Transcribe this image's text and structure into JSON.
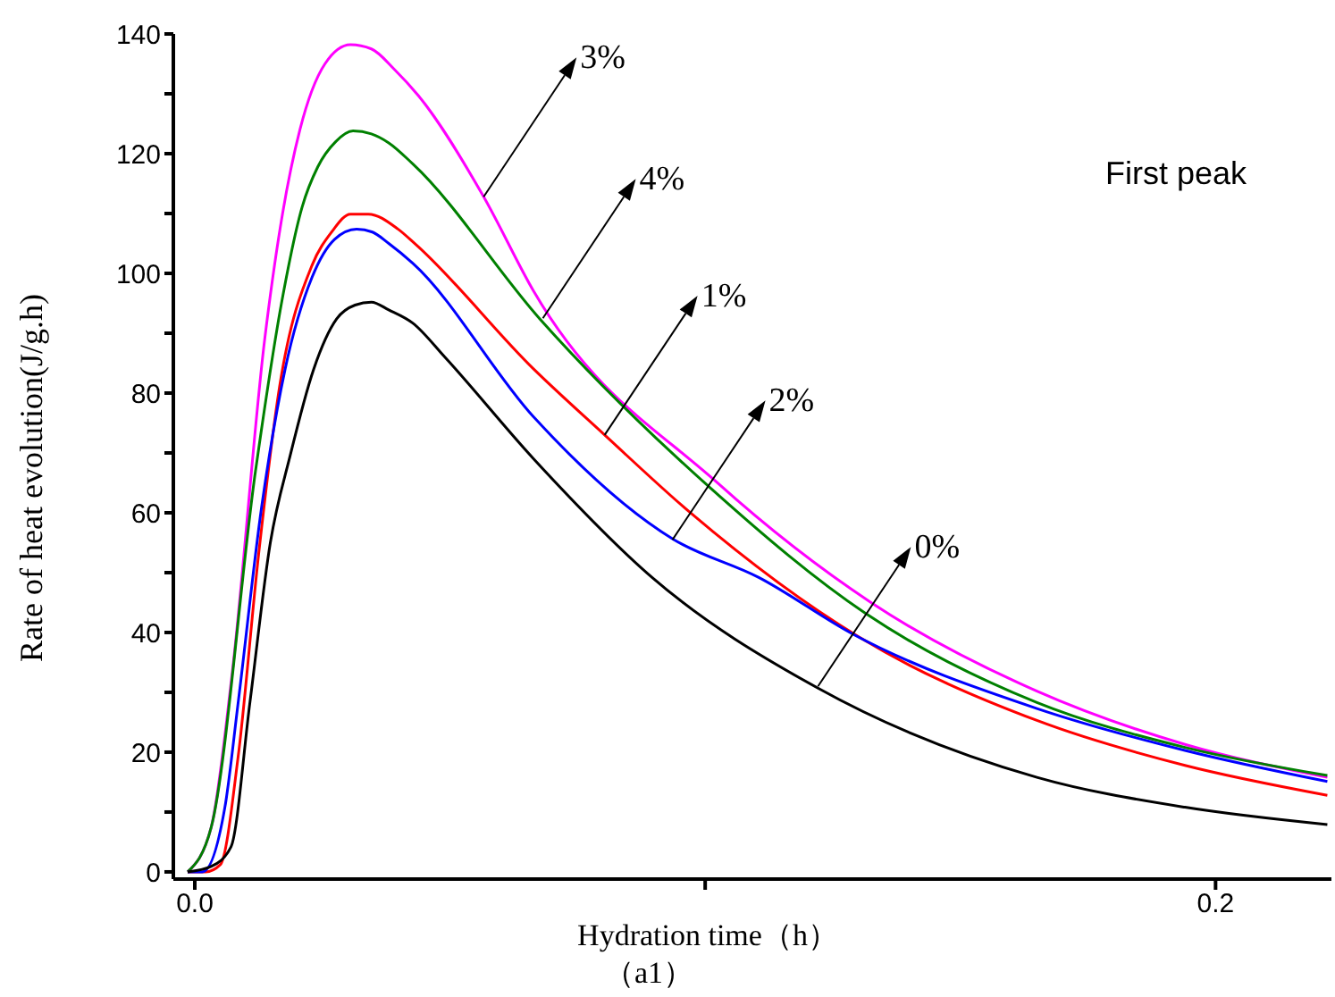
{
  "chart_data": {
    "type": "line",
    "xlabel": "Hydration time（h）",
    "ylabel": "Rate of heat evolution(J/g.h)",
    "xlim": [
      -0.0042,
      0.2227
    ],
    "xticks": [
      {
        "value": 0,
        "label": "0.0"
      },
      {
        "value": 0.1,
        "label": null
      },
      {
        "value": 0.2,
        "label": "0.2"
      }
    ],
    "ylim": [
      -1.2,
      140
    ],
    "yticks": [
      0,
      {
        "value": 10,
        "label": null
      },
      20,
      {
        "value": 30,
        "label": null
      },
      40,
      {
        "value": 50,
        "label": null
      },
      60,
      {
        "value": 70,
        "label": null
      },
      80,
      {
        "value": 90,
        "label": null
      },
      100,
      {
        "value": 110,
        "label": null
      },
      120,
      {
        "value": 130,
        "label": null
      },
      140
    ],
    "marker": "none",
    "line_style": "solid",
    "series": [
      {
        "color": "#ff00ff",
        "x": [
          -0.0014,
          0.0032,
          0.0073,
          0.0137,
          0.0172,
          0.0206,
          0.0255,
          0.0305,
          0.0346,
          0.0392,
          0.0438,
          0.0566,
          0.0664,
          0.1024,
          0.1325,
          0.165,
          0.194,
          0.2219
        ],
        "values": [
          0,
          7.4,
          33,
          89,
          110,
          124,
          135,
          138.2,
          137.5,
          134,
          129.7,
          112.8,
          97,
          65,
          45,
          30.2,
          21.3,
          15.8
        ]
      },
      {
        "color": "#008000",
        "x": [
          -0.0014,
          0.0032,
          0.0119,
          0.0172,
          0.021,
          0.0241,
          0.0276,
          0.031,
          0.0346,
          0.038,
          0.0427,
          0.0676,
          0.1012,
          0.1314,
          0.165,
          0.194,
          0.2219
        ],
        "values": [
          0,
          7.4,
          67,
          96,
          111,
          117.8,
          122,
          123.8,
          123.3,
          121.8,
          118.3,
          92.4,
          64,
          43.2,
          28.3,
          20.8,
          16.1
        ]
      },
      {
        "color": "#ff0000",
        "x": [
          -0.0014,
          0.0021,
          0.005,
          0.0085,
          0.0125,
          0.0166,
          0.023,
          0.0268,
          0.0305,
          0.034,
          0.0398,
          0.0432,
          0.0664,
          0.0803,
          0.0971,
          0.1302,
          0.165,
          0.194,
          0.2219
        ],
        "values": [
          0,
          0,
          1.2,
          19.3,
          53,
          81,
          101.4,
          106.9,
          109.9,
          109.9,
          107.4,
          104.9,
          84,
          73,
          60,
          39.2,
          25.3,
          17.8,
          12.8
        ]
      },
      {
        "color": "#0000ff",
        "x": [
          -0.0014,
          0.0015,
          0.0059,
          0.0085,
          0.0131,
          0.0177,
          0.023,
          0.0274,
          0.0317,
          0.0348,
          0.038,
          0.0427,
          0.0664,
          0.0937,
          0.1105,
          0.129,
          0.165,
          0.194,
          0.2219
        ],
        "values": [
          0,
          0,
          10.8,
          28.3,
          61,
          84,
          99.4,
          105.7,
          107.4,
          106.9,
          105,
          101.7,
          76,
          55.6,
          49.2,
          39.7,
          27.3,
          20.3,
          15.1
        ]
      },
      {
        "color": "#000000",
        "x": [
          -0.0014,
          0.0032,
          0.0071,
          0.0108,
          0.0148,
          0.0187,
          0.0233,
          0.0278,
          0.0314,
          0.0346,
          0.038,
          0.0427,
          0.049,
          0.0664,
          0.0896,
          0.1221,
          0.165,
          0.194,
          0.2219
        ],
        "values": [
          0,
          0.9,
          4.2,
          28.3,
          55,
          69.6,
          84,
          92.4,
          94.7,
          95.2,
          93.9,
          91.7,
          86,
          69,
          49.2,
          30.7,
          15.8,
          10.8,
          7.9
        ]
      }
    ],
    "annotations": [
      {
        "text": "3%",
        "x": 0.0566,
        "y": 112.8
      },
      {
        "text": "4%",
        "x": 0.0682,
        "y": 92.5
      },
      {
        "text": "1%",
        "x": 0.0803,
        "y": 73
      },
      {
        "text": "2%",
        "x": 0.0936,
        "y": 55.5
      },
      {
        "text": "0%",
        "x": 0.1221,
        "y": 31
      },
      "First peak",
      "（a1）"
    ]
  }
}
